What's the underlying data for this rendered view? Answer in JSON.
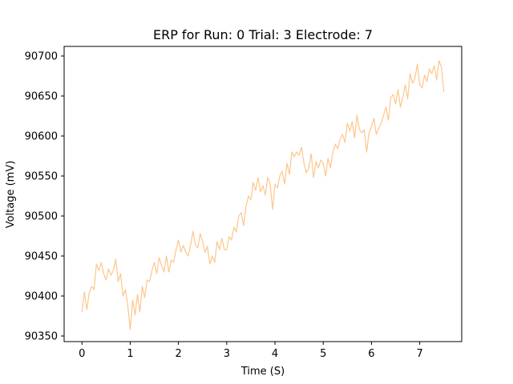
{
  "chart_data": {
    "type": "line",
    "title": "ERP for Run: 0 Trial: 3 Electrode: 7",
    "xlabel": "Time (S)",
    "ylabel": "Voltage (mV)",
    "xlim": [
      -0.37,
      7.87
    ],
    "ylim": [
      90343,
      90712
    ],
    "x_ticks": [
      0,
      1,
      2,
      3,
      4,
      5,
      6,
      7
    ],
    "y_ticks": [
      90350,
      90400,
      90450,
      90500,
      90550,
      90600,
      90650,
      90700
    ],
    "grid": false,
    "legend": "none",
    "series": [
      {
        "color": "#fdc68c",
        "x": [
          0.0,
          0.05,
          0.1,
          0.15,
          0.2,
          0.25,
          0.3,
          0.35,
          0.4,
          0.45,
          0.5,
          0.55,
          0.6,
          0.65,
          0.7,
          0.75,
          0.8,
          0.85,
          0.9,
          0.95,
          1.0,
          1.05,
          1.1,
          1.15,
          1.2,
          1.25,
          1.3,
          1.35,
          1.4,
          1.45,
          1.5,
          1.55,
          1.6,
          1.65,
          1.7,
          1.75,
          1.8,
          1.85,
          1.9,
          1.95,
          2.0,
          2.05,
          2.1,
          2.15,
          2.2,
          2.25,
          2.3,
          2.35,
          2.4,
          2.45,
          2.5,
          2.55,
          2.6,
          2.65,
          2.7,
          2.75,
          2.8,
          2.85,
          2.9,
          2.95,
          3.0,
          3.05,
          3.1,
          3.15,
          3.2,
          3.25,
          3.3,
          3.35,
          3.4,
          3.45,
          3.5,
          3.55,
          3.6,
          3.65,
          3.7,
          3.75,
          3.8,
          3.85,
          3.9,
          3.95,
          4.0,
          4.05,
          4.1,
          4.15,
          4.2,
          4.25,
          4.3,
          4.35,
          4.4,
          4.45,
          4.5,
          4.55,
          4.6,
          4.65,
          4.7,
          4.75,
          4.8,
          4.85,
          4.9,
          4.95,
          5.0,
          5.05,
          5.1,
          5.15,
          5.2,
          5.25,
          5.3,
          5.35,
          5.4,
          5.45,
          5.5,
          5.55,
          5.6,
          5.65,
          5.7,
          5.75,
          5.8,
          5.85,
          5.9,
          5.95,
          6.0,
          6.05,
          6.1,
          6.15,
          6.2,
          6.25,
          6.3,
          6.35,
          6.4,
          6.45,
          6.5,
          6.55,
          6.6,
          6.65,
          6.7,
          6.75,
          6.8,
          6.85,
          6.9,
          6.95,
          7.0,
          7.05,
          7.1,
          7.15,
          7.2,
          7.25,
          7.3,
          7.35,
          7.4,
          7.45,
          7.5
        ],
        "y": [
          90380,
          90405,
          90383,
          90404,
          90412,
          90408,
          90440,
          90432,
          90442,
          90428,
          90420,
          90434,
          90426,
          90432,
          90446,
          90418,
          90428,
          90400,
          90408,
          90388,
          90358,
          90395,
          90376,
          90402,
          90380,
          90412,
          90398,
          90420,
          90418,
          90432,
          90442,
          90428,
          90448,
          90438,
          90430,
          90450,
          90430,
          90445,
          90442,
          90458,
          90470,
          90455,
          90463,
          90455,
          90450,
          90463,
          90481,
          90464,
          90460,
          90478,
          90468,
          90455,
          90462,
          90440,
          90450,
          90442,
          90468,
          90458,
          90472,
          90458,
          90458,
          90474,
          90470,
          90486,
          90480,
          90500,
          90504,
          90488,
          90512,
          90525,
          90520,
          90542,
          90532,
          90548,
          90530,
          90538,
          90526,
          90548,
          90540,
          90508,
          90540,
          90535,
          90550,
          90556,
          90540,
          90566,
          90552,
          90580,
          90574,
          90580,
          90576,
          90586,
          90566,
          90554,
          90560,
          90578,
          90548,
          90568,
          90560,
          90570,
          90566,
          90550,
          90572,
          90560,
          90580,
          90590,
          90584,
          90596,
          90602,
          90592,
          90616,
          90606,
          90618,
          90598,
          90626,
          90608,
          90604,
          90608,
          90580,
          90604,
          90612,
          90622,
          90602,
          90610,
          90616,
          90626,
          90636,
          90620,
          90648,
          90652,
          90640,
          90658,
          90636,
          90648,
          90664,
          90646,
          90678,
          90666,
          90672,
          90690,
          90664,
          90660,
          90676,
          90668,
          90684,
          90678,
          90688,
          90670,
          90694,
          90686,
          90655
        ]
      }
    ]
  }
}
